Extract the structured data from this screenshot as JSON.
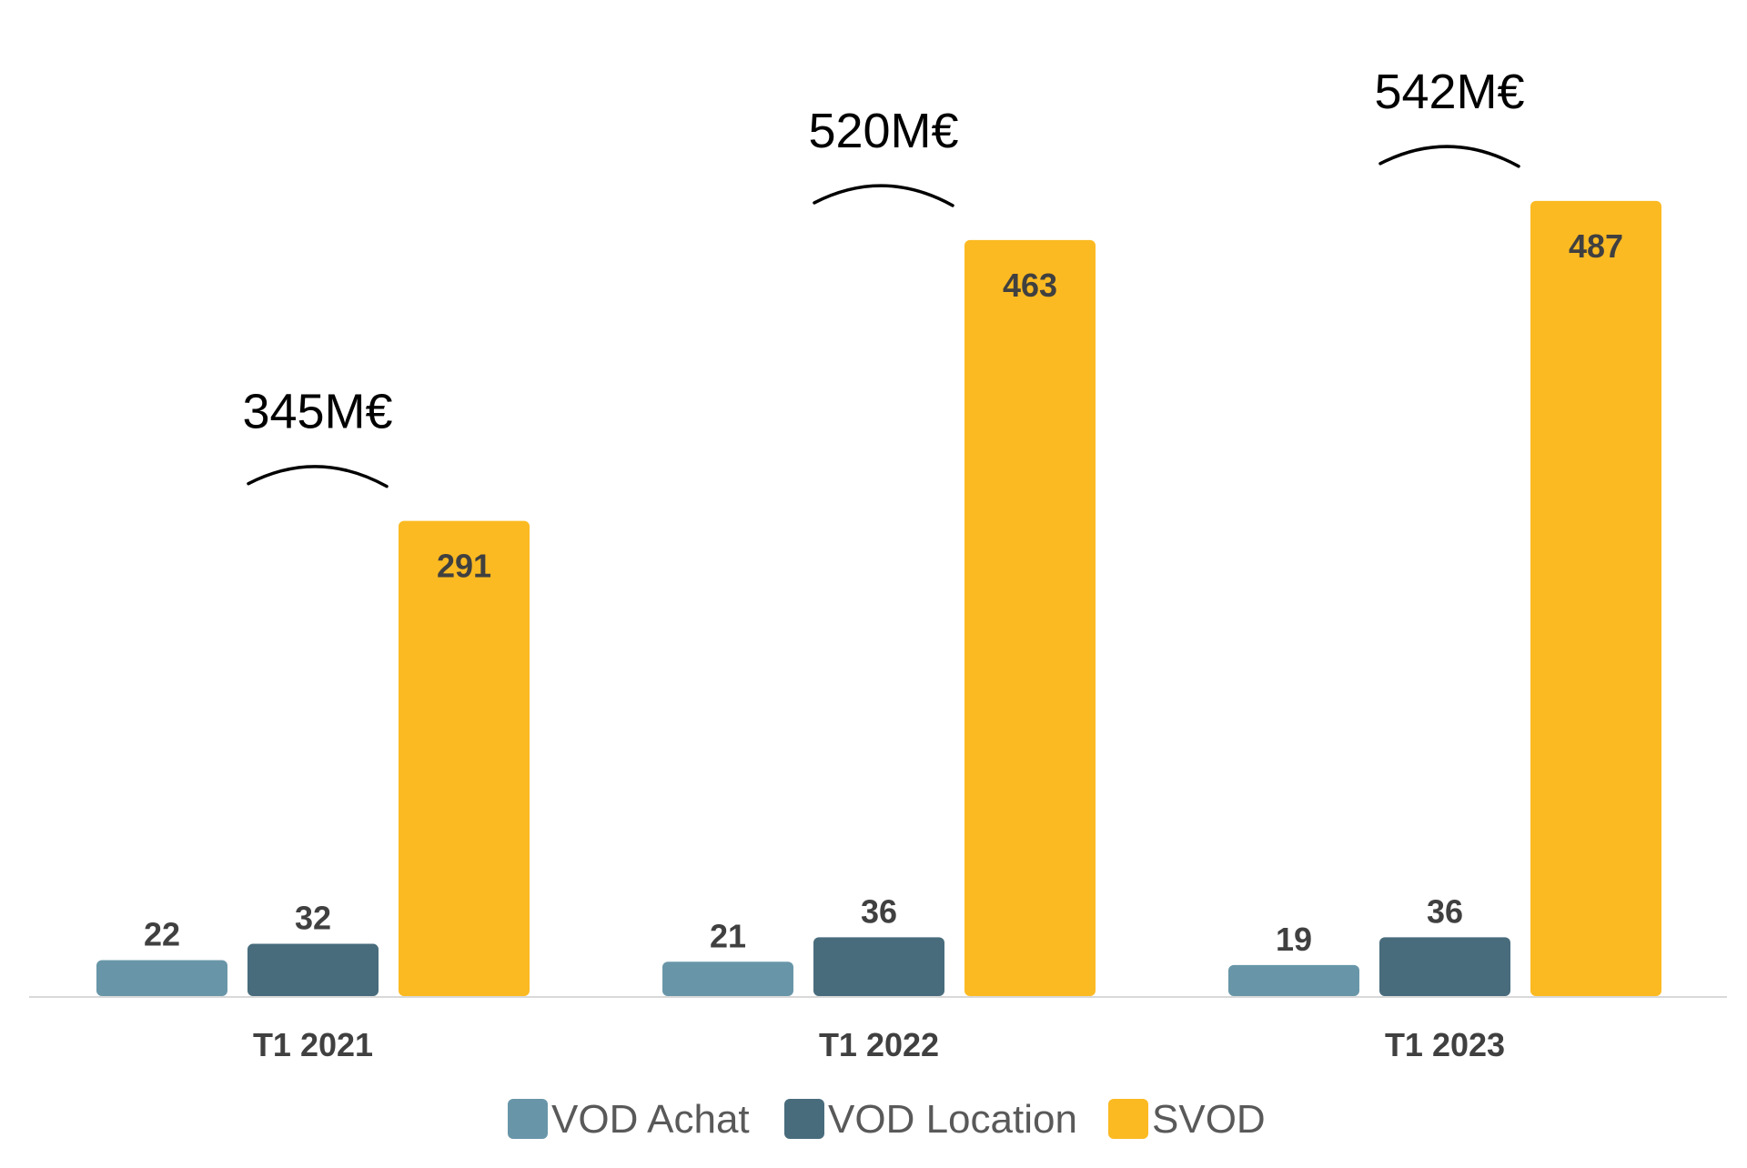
{
  "chart_data": {
    "type": "bar",
    "title": "",
    "xlabel": "",
    "ylabel": "",
    "ylim": [
      0,
      520
    ],
    "grid": false,
    "legend_position": "bottom",
    "categories": [
      "T1 2021",
      "T1 2022",
      "T1 2023"
    ],
    "series": [
      {
        "name": "VOD Achat",
        "color": "#6896A8",
        "values": [
          22,
          21,
          19
        ]
      },
      {
        "name": "VOD Location",
        "color": "#486C7C",
        "values": [
          32,
          36,
          36
        ]
      },
      {
        "name": "SVOD",
        "color": "#FBBA22",
        "values": [
          291,
          463,
          487
        ]
      }
    ],
    "totals": [
      "345M€",
      "520M€",
      "542M€"
    ]
  }
}
